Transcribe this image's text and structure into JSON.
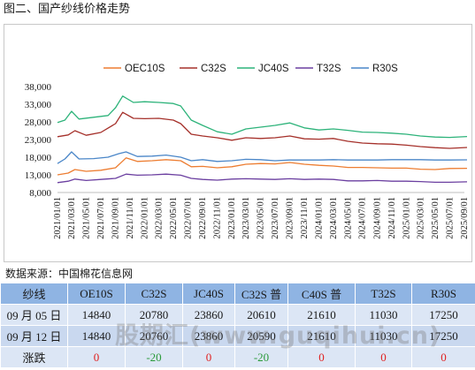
{
  "figure": {
    "title": "图二、国产纱线价格走势",
    "source": "数据来源：中国棉花信息网",
    "watermark": "股期汇(www.guqihui.cn)"
  },
  "chart_data": {
    "type": "line",
    "legend_position": "top",
    "grid": false,
    "ylim": [
      8000,
      38000
    ],
    "yticks": [
      "38,000",
      "33,000",
      "28,000",
      "23,000",
      "18,000",
      "13,000",
      "8,000"
    ],
    "xticks": [
      "2021/01/01",
      "2021/03/01",
      "2021/05/01",
      "2021/07/01",
      "2021/09/01",
      "2021/11/01",
      "2022/01/01",
      "2022/03/01",
      "2022/05/01",
      "2022/07/01",
      "2022/09/01",
      "2022/11/01",
      "2023/01/01",
      "2023/03/01",
      "2023/05/01",
      "2023/07/01",
      "2023/09/01",
      "2023/11/01",
      "2024/01/01",
      "2024/03/01",
      "2024/05/01",
      "2024/07/01",
      "2024/09/01",
      "2024/11/01",
      "2025/01/01",
      "2025/03/01",
      "2025/05/01",
      "2025/07/01",
      "2025/09/01"
    ],
    "series": [
      {
        "name": "OEC10S",
        "color": "#ed7d31",
        "points": [
          [
            "2021/01/01",
            13000
          ],
          [
            "2021/02/15",
            13500
          ],
          [
            "2021/03/15",
            14500
          ],
          [
            "2021/05/01",
            14000
          ],
          [
            "2021/07/01",
            14300
          ],
          [
            "2021/09/01",
            15000
          ],
          [
            "2021/10/15",
            17800
          ],
          [
            "2021/12/01",
            16800
          ],
          [
            "2022/02/01",
            17000
          ],
          [
            "2022/04/01",
            17300
          ],
          [
            "2022/06/01",
            17000
          ],
          [
            "2022/07/15",
            15300
          ],
          [
            "2022/09/01",
            15400
          ],
          [
            "2022/11/01",
            15000
          ],
          [
            "2023/01/01",
            15300
          ],
          [
            "2023/03/01",
            16000
          ],
          [
            "2023/05/01",
            16200
          ],
          [
            "2023/07/01",
            16100
          ],
          [
            "2023/09/01",
            16500
          ],
          [
            "2023/11/01",
            16000
          ],
          [
            "2024/01/01",
            15700
          ],
          [
            "2024/03/01",
            15500
          ],
          [
            "2024/05/01",
            15100
          ],
          [
            "2024/07/01",
            15100
          ],
          [
            "2024/09/01",
            15000
          ],
          [
            "2024/11/01",
            14900
          ],
          [
            "2025/01/01",
            14900
          ],
          [
            "2025/03/01",
            14600
          ],
          [
            "2025/05/01",
            14500
          ],
          [
            "2025/07/01",
            14800
          ],
          [
            "2025/09/12",
            14840
          ]
        ]
      },
      {
        "name": "C32S",
        "color": "#a5302a",
        "points": [
          [
            "2021/01/01",
            23800
          ],
          [
            "2021/02/15",
            24300
          ],
          [
            "2021/03/15",
            25500
          ],
          [
            "2021/05/01",
            24200
          ],
          [
            "2021/07/01",
            25000
          ],
          [
            "2021/09/01",
            27500
          ],
          [
            "2021/10/01",
            30700
          ],
          [
            "2021/11/15",
            29000
          ],
          [
            "2022/01/01",
            28900
          ],
          [
            "2022/03/01",
            29000
          ],
          [
            "2022/05/01",
            28500
          ],
          [
            "2022/06/01",
            27500
          ],
          [
            "2022/07/15",
            24500
          ],
          [
            "2022/09/01",
            24000
          ],
          [
            "2022/11/01",
            23500
          ],
          [
            "2023/01/01",
            22800
          ],
          [
            "2023/03/01",
            23500
          ],
          [
            "2023/05/01",
            23300
          ],
          [
            "2023/07/01",
            23500
          ],
          [
            "2023/09/01",
            24000
          ],
          [
            "2023/11/01",
            23200
          ],
          [
            "2024/01/01",
            23100
          ],
          [
            "2024/03/01",
            23300
          ],
          [
            "2024/05/01",
            22500
          ],
          [
            "2024/07/01",
            22000
          ],
          [
            "2024/09/01",
            21800
          ],
          [
            "2024/11/01",
            21700
          ],
          [
            "2025/01/01",
            21400
          ],
          [
            "2025/03/01",
            21000
          ],
          [
            "2025/05/01",
            20700
          ],
          [
            "2025/07/01",
            20500
          ],
          [
            "2025/09/12",
            20760
          ]
        ]
      },
      {
        "name": "JC40S",
        "color": "#2db37a",
        "points": [
          [
            "2021/01/01",
            27800
          ],
          [
            "2021/02/01",
            28500
          ],
          [
            "2021/03/01",
            31000
          ],
          [
            "2021/04/01",
            28800
          ],
          [
            "2021/06/01",
            29300
          ],
          [
            "2021/08/01",
            29800
          ],
          [
            "2021/09/01",
            32000
          ],
          [
            "2021/10/01",
            35300
          ],
          [
            "2021/11/15",
            33500
          ],
          [
            "2022/01/01",
            33700
          ],
          [
            "2022/03/01",
            33500
          ],
          [
            "2022/05/01",
            33200
          ],
          [
            "2022/06/01",
            32500
          ],
          [
            "2022/07/15",
            28500
          ],
          [
            "2022/09/01",
            27000
          ],
          [
            "2022/11/01",
            25200
          ],
          [
            "2023/01/01",
            24500
          ],
          [
            "2023/03/01",
            26000
          ],
          [
            "2023/05/01",
            26500
          ],
          [
            "2023/07/01",
            27000
          ],
          [
            "2023/09/01",
            27700
          ],
          [
            "2023/11/01",
            26300
          ],
          [
            "2024/01/01",
            25700
          ],
          [
            "2024/03/01",
            26000
          ],
          [
            "2024/05/01",
            25600
          ],
          [
            "2024/07/01",
            25100
          ],
          [
            "2024/09/01",
            25000
          ],
          [
            "2024/11/01",
            24800
          ],
          [
            "2025/01/01",
            24500
          ],
          [
            "2025/03/01",
            24000
          ],
          [
            "2025/05/01",
            23700
          ],
          [
            "2025/07/01",
            23600
          ],
          [
            "2025/09/12",
            23860
          ]
        ]
      },
      {
        "name": "T32S",
        "color": "#6b3fa0",
        "points": [
          [
            "2021/01/01",
            10800
          ],
          [
            "2021/02/15",
            11200
          ],
          [
            "2021/03/15",
            11800
          ],
          [
            "2021/05/01",
            11400
          ],
          [
            "2021/07/01",
            11700
          ],
          [
            "2021/09/01",
            12000
          ],
          [
            "2021/10/15",
            13200
          ],
          [
            "2021/12/01",
            12900
          ],
          [
            "2022/02/01",
            13000
          ],
          [
            "2022/04/01",
            13200
          ],
          [
            "2022/06/01",
            12900
          ],
          [
            "2022/07/15",
            12000
          ],
          [
            "2022/09/01",
            11700
          ],
          [
            "2022/11/01",
            11500
          ],
          [
            "2023/01/01",
            11800
          ],
          [
            "2023/03/01",
            11900
          ],
          [
            "2023/05/01",
            11800
          ],
          [
            "2023/07/01",
            11700
          ],
          [
            "2023/09/01",
            11900
          ],
          [
            "2023/11/01",
            11700
          ],
          [
            "2024/01/01",
            11800
          ],
          [
            "2024/03/01",
            11700
          ],
          [
            "2024/05/01",
            11300
          ],
          [
            "2024/07/01",
            11300
          ],
          [
            "2024/09/01",
            11400
          ],
          [
            "2024/11/01",
            11200
          ],
          [
            "2025/01/01",
            11200
          ],
          [
            "2025/03/01",
            11100
          ],
          [
            "2025/05/01",
            10900
          ],
          [
            "2025/07/01",
            10900
          ],
          [
            "2025/09/12",
            11030
          ]
        ]
      },
      {
        "name": "R30S",
        "color": "#4a86c8",
        "points": [
          [
            "2021/01/01",
            16200
          ],
          [
            "2021/02/01",
            17500
          ],
          [
            "2021/03/01",
            19500
          ],
          [
            "2021/04/01",
            17500
          ],
          [
            "2021/06/01",
            17600
          ],
          [
            "2021/08/01",
            18000
          ],
          [
            "2021/09/15",
            19000
          ],
          [
            "2021/10/15",
            19500
          ],
          [
            "2021/12/01",
            18200
          ],
          [
            "2022/02/01",
            18300
          ],
          [
            "2022/04/01",
            18600
          ],
          [
            "2022/06/01",
            18000
          ],
          [
            "2022/07/15",
            17000
          ],
          [
            "2022/09/01",
            17300
          ],
          [
            "2022/11/01",
            16800
          ],
          [
            "2023/01/01",
            17000
          ],
          [
            "2023/03/01",
            17400
          ],
          [
            "2023/05/01",
            17300
          ],
          [
            "2023/07/01",
            17000
          ],
          [
            "2023/09/01",
            17200
          ],
          [
            "2023/11/01",
            17200
          ],
          [
            "2024/01/01",
            17200
          ],
          [
            "2024/03/01",
            17300
          ],
          [
            "2024/05/01",
            17200
          ],
          [
            "2024/07/01",
            17200
          ],
          [
            "2024/09/01",
            17200
          ],
          [
            "2024/11/01",
            17300
          ],
          [
            "2025/01/01",
            17300
          ],
          [
            "2025/03/01",
            17300
          ],
          [
            "2025/05/01",
            17200
          ],
          [
            "2025/07/01",
            17200
          ],
          [
            "2025/09/12",
            17250
          ]
        ]
      }
    ]
  },
  "table": {
    "headers": [
      "纱线",
      "OE10S",
      "C32S",
      "JC40S",
      "C32S 普",
      "C40S 普",
      "T32S",
      "R30S"
    ],
    "rows": [
      {
        "label": "09 月 05 日",
        "values": [
          "14840",
          "20780",
          "23860",
          "20610",
          "21610",
          "11030",
          "17250"
        ]
      },
      {
        "label": "09 月 12 日",
        "values": [
          "14840",
          "20760",
          "23860",
          "20590",
          "21610",
          "11030",
          "17250"
        ]
      }
    ],
    "change": {
      "label": "涨跌",
      "values": [
        "0",
        "-20",
        "0",
        "-20",
        "0",
        "0",
        "0"
      ]
    }
  }
}
